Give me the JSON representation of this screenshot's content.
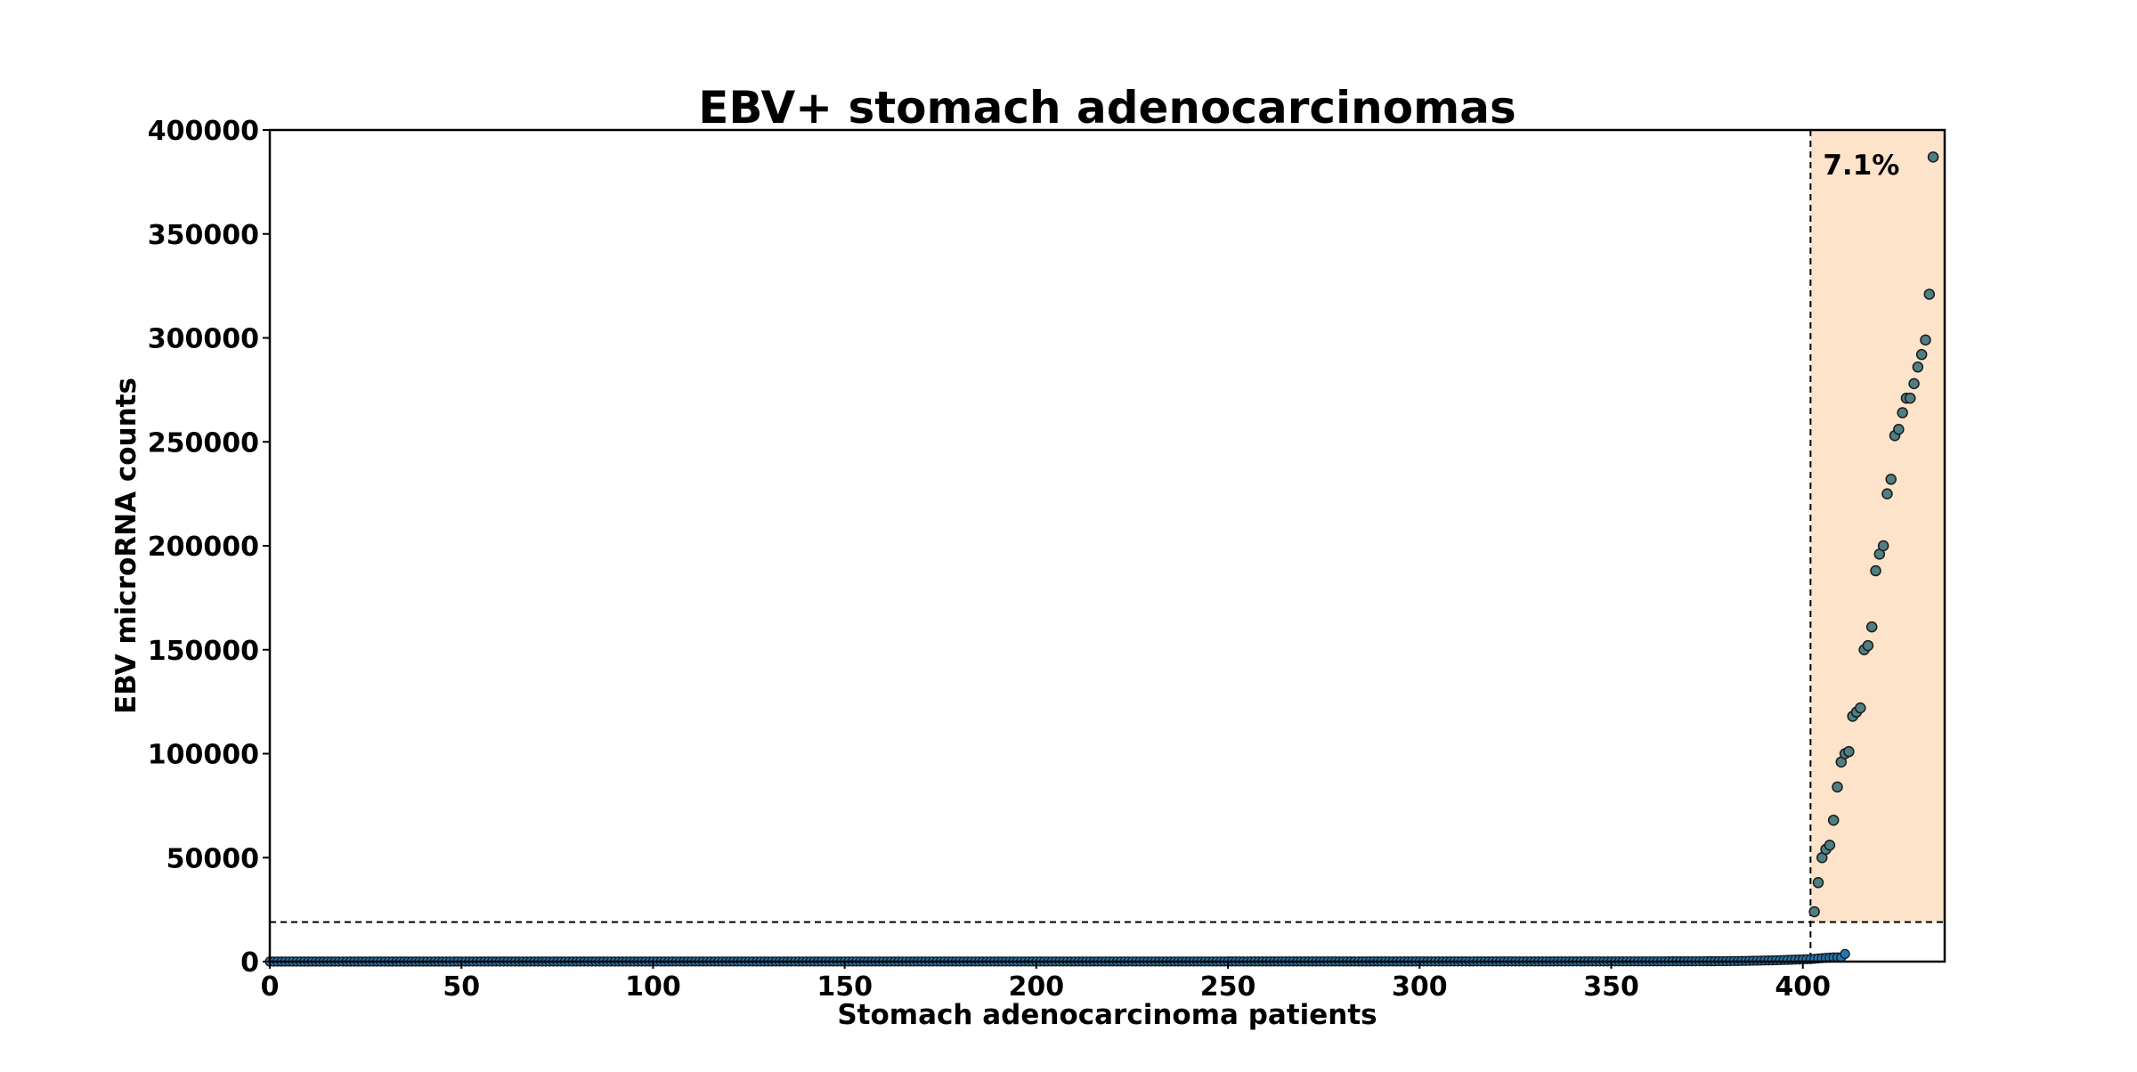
{
  "chart_data": {
    "type": "scatter",
    "title": "EBV+ stomach adenocarcinomas",
    "xlabel": "Stomach adenocarcinoma patients",
    "ylabel": "EBV microRNA counts",
    "xlim": [
      0,
      437
    ],
    "ylim": [
      0,
      400000
    ],
    "x_ticks": [
      0,
      50,
      100,
      150,
      200,
      250,
      300,
      350,
      400
    ],
    "y_ticks": [
      0,
      50000,
      100000,
      150000,
      200000,
      250000,
      300000,
      350000,
      400000
    ],
    "threshold": {
      "y": 19000,
      "x_start": 402
    },
    "highlight": {
      "x_from": 402,
      "x_to": 437,
      "y_from": 19000,
      "y_to": 400000,
      "color": "#fde3c9",
      "label": "7.1%"
    },
    "marker_colors": {
      "low": "#1f77b4",
      "high": "#4f7f82",
      "edge": "#1a1a1a"
    },
    "grid": false,
    "legend": "none",
    "low_series": {
      "x_start": 0,
      "values": [
        20,
        20,
        20,
        20,
        20,
        20,
        20,
        20,
        20,
        20,
        20,
        20,
        20,
        20,
        20,
        20,
        20,
        20,
        20,
        20,
        20,
        20,
        20,
        20,
        20,
        20,
        20,
        20,
        20,
        20,
        20,
        20,
        20,
        20,
        20,
        20,
        20,
        20,
        20,
        20,
        20,
        20,
        20,
        20,
        20,
        20,
        20,
        20,
        20,
        20,
        30,
        30,
        30,
        30,
        30,
        30,
        30,
        30,
        30,
        30,
        30,
        30,
        30,
        30,
        30,
        30,
        30,
        30,
        30,
        30,
        30,
        30,
        30,
        30,
        30,
        30,
        30,
        30,
        30,
        30,
        30,
        30,
        30,
        30,
        30,
        30,
        30,
        30,
        30,
        30,
        30,
        30,
        30,
        30,
        30,
        30,
        30,
        30,
        30,
        30,
        40,
        40,
        40,
        40,
        40,
        40,
        40,
        40,
        40,
        40,
        40,
        40,
        40,
        40,
        40,
        40,
        40,
        40,
        40,
        40,
        40,
        40,
        40,
        40,
        40,
        40,
        40,
        40,
        40,
        40,
        40,
        40,
        40,
        40,
        40,
        40,
        40,
        40,
        40,
        40,
        40,
        40,
        40,
        40,
        40,
        40,
        40,
        40,
        40,
        40,
        50,
        50,
        50,
        50,
        50,
        50,
        50,
        50,
        50,
        50,
        50,
        50,
        50,
        50,
        50,
        50,
        50,
        50,
        50,
        50,
        50,
        50,
        50,
        50,
        50,
        50,
        50,
        50,
        50,
        50,
        50,
        50,
        50,
        50,
        50,
        50,
        50,
        50,
        50,
        50,
        50,
        50,
        50,
        50,
        50,
        50,
        50,
        50,
        50,
        50,
        60,
        60,
        60,
        60,
        60,
        60,
        60,
        60,
        60,
        60,
        60,
        60,
        60,
        60,
        60,
        60,
        60,
        60,
        60,
        60,
        60,
        60,
        60,
        60,
        60,
        60,
        60,
        60,
        60,
        60,
        60,
        60,
        60,
        60,
        60,
        60,
        60,
        60,
        60,
        60,
        60,
        60,
        60,
        60,
        60,
        60,
        60,
        60,
        60,
        60,
        70,
        70,
        70,
        70,
        70,
        70,
        70,
        70,
        70,
        70,
        70,
        70,
        70,
        70,
        70,
        70,
        70,
        70,
        70,
        70,
        70,
        70,
        70,
        70,
        70,
        70,
        70,
        70,
        70,
        70,
        70,
        70,
        70,
        70,
        70,
        70,
        70,
        70,
        70,
        70,
        70,
        70,
        70,
        70,
        70,
        70,
        70,
        70,
        70,
        70,
        80,
        80,
        80,
        80,
        80,
        80,
        80,
        80,
        80,
        80,
        80,
        80,
        80,
        80,
        80,
        80,
        80,
        80,
        80,
        80,
        80,
        80,
        80,
        80,
        80,
        80,
        80,
        80,
        80,
        80,
        80,
        80,
        80,
        80,
        80,
        80,
        80,
        80,
        80,
        80,
        90,
        90,
        90,
        90,
        90,
        90,
        90,
        90,
        90,
        90,
        100,
        100,
        100,
        100,
        100,
        100,
        100,
        100,
        100,
        100,
        120,
        120,
        120,
        120,
        120,
        140,
        140,
        140,
        140,
        140,
        160,
        160,
        160,
        160,
        160,
        180,
        180,
        180,
        200,
        200,
        220,
        240,
        260,
        280,
        300,
        330,
        360,
        400,
        440,
        480,
        520,
        560,
        600,
        650,
        700,
        760,
        820,
        880,
        940,
        1000,
        1060,
        1120,
        1200,
        1350,
        1500,
        1650,
        1800,
        1900,
        2000,
        2000,
        2000,
        3700
      ]
    },
    "high_series": [
      {
        "x": 403,
        "y": 24000
      },
      {
        "x": 404,
        "y": 38000
      },
      {
        "x": 405,
        "y": 50000
      },
      {
        "x": 406,
        "y": 54000
      },
      {
        "x": 407,
        "y": 56000
      },
      {
        "x": 408,
        "y": 68000
      },
      {
        "x": 409,
        "y": 84000
      },
      {
        "x": 410,
        "y": 96000
      },
      {
        "x": 411,
        "y": 100000
      },
      {
        "x": 412,
        "y": 101000
      },
      {
        "x": 413,
        "y": 118000
      },
      {
        "x": 414,
        "y": 120000
      },
      {
        "x": 415,
        "y": 122000
      },
      {
        "x": 416,
        "y": 150000
      },
      {
        "x": 417,
        "y": 152000
      },
      {
        "x": 418,
        "y": 161000
      },
      {
        "x": 419,
        "y": 188000
      },
      {
        "x": 420,
        "y": 196000
      },
      {
        "x": 421,
        "y": 200000
      },
      {
        "x": 422,
        "y": 225000
      },
      {
        "x": 423,
        "y": 232000
      },
      {
        "x": 424,
        "y": 253000
      },
      {
        "x": 425,
        "y": 256000
      },
      {
        "x": 426,
        "y": 264000
      },
      {
        "x": 427,
        "y": 271000
      },
      {
        "x": 428,
        "y": 271000
      },
      {
        "x": 429,
        "y": 278000
      },
      {
        "x": 430,
        "y": 286000
      },
      {
        "x": 431,
        "y": 292000
      },
      {
        "x": 432,
        "y": 299000
      },
      {
        "x": 433,
        "y": 321000
      },
      {
        "x": 434,
        "y": 387000
      }
    ]
  }
}
